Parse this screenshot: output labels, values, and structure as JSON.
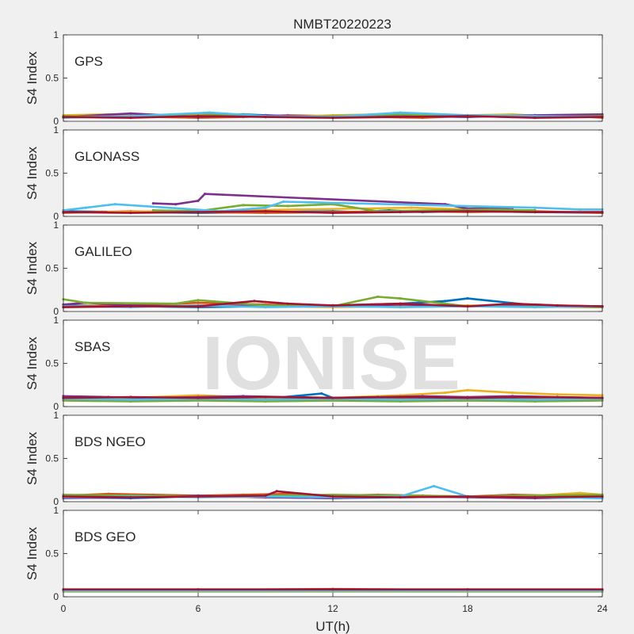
{
  "chart_data": {
    "type": "scatter",
    "title": "NMBT20220223",
    "xlabel": "UT(h)",
    "ylabel": "S4 Index",
    "xlim": [
      0,
      24
    ],
    "ylim": [
      0,
      1
    ],
    "x_ticks": [
      "0",
      "6",
      "12",
      "18",
      "24"
    ],
    "y_ticks": [
      "0",
      "0.5",
      "1"
    ],
    "watermark": "IONISE",
    "series_colors": [
      "#0072BD",
      "#D95319",
      "#EDB120",
      "#7E2F8E",
      "#77AC30",
      "#4DBEEE",
      "#A2142F"
    ],
    "panels": [
      {
        "label": "GPS",
        "series": [
          {
            "x": [
              0,
              2,
              4,
              6,
              8,
              10,
              12,
              14,
              16,
              18,
              20,
              22,
              24
            ],
            "y": [
              0.06,
              0.05,
              0.07,
              0.06,
              0.08,
              0.06,
              0.05,
              0.07,
              0.06,
              0.05,
              0.07,
              0.06,
              0.07
            ]
          },
          {
            "x": [
              0,
              2,
              4,
              6,
              8,
              10,
              12,
              14,
              16,
              18,
              20,
              22,
              24
            ],
            "y": [
              0.04,
              0.06,
              0.05,
              0.04,
              0.05,
              0.07,
              0.06,
              0.05,
              0.04,
              0.06,
              0.05,
              0.07,
              0.04
            ]
          },
          {
            "x": [
              0,
              2,
              4,
              6,
              8,
              10,
              12,
              14,
              16,
              18,
              20,
              22,
              24
            ],
            "y": [
              0.07,
              0.08,
              0.06,
              0.07,
              0.06,
              0.05,
              0.07,
              0.08,
              0.06,
              0.07,
              0.08,
              0.05,
              0.06
            ]
          },
          {
            "x": [
              0,
              3,
              6,
              9,
              12,
              15,
              18,
              21,
              24
            ],
            "y": [
              0.05,
              0.09,
              0.05,
              0.07,
              0.05,
              0.06,
              0.05,
              0.07,
              0.08
            ]
          },
          {
            "x": [
              0,
              3,
              6,
              9,
              12,
              15,
              18,
              21,
              24
            ],
            "y": [
              0.06,
              0.05,
              0.09,
              0.05,
              0.06,
              0.08,
              0.06,
              0.05,
              0.06
            ]
          },
          {
            "x": [
              0,
              3,
              6.5,
              9,
              12,
              15,
              18,
              21,
              24
            ],
            "y": [
              0.04,
              0.06,
              0.1,
              0.06,
              0.05,
              0.1,
              0.07,
              0.06,
              0.05
            ]
          },
          {
            "x": [
              0,
              3,
              6,
              9,
              12,
              15,
              18,
              21,
              24
            ],
            "y": [
              0.05,
              0.04,
              0.06,
              0.05,
              0.04,
              0.05,
              0.06,
              0.04,
              0.05
            ]
          }
        ]
      },
      {
        "label": "GLONASS",
        "series": [
          {
            "x": [
              0,
              3,
              6,
              9,
              12,
              13,
              14.5,
              16,
              18,
              21,
              24
            ],
            "y": [
              0.06,
              0.05,
              0.04,
              0.05,
              0.06,
              0.05,
              0.07,
              0.05,
              0.06,
              0.05,
              0.04
            ]
          },
          {
            "x": [
              0,
              3,
              6,
              9,
              12,
              15,
              18,
              21,
              24
            ],
            "y": [
              0.04,
              0.06,
              0.05,
              0.04,
              0.05,
              0.06,
              0.05,
              0.06,
              0.04
            ]
          },
          {
            "x": [
              2,
              4,
              6,
              8,
              15.5,
              18,
              20
            ],
            "y": [
              0.05,
              0.06,
              0.05,
              0.07,
              0.1,
              0.08,
              0.1
            ]
          },
          {
            "x": [
              4,
              5,
              6,
              6.3,
              17,
              18,
              20
            ],
            "y": [
              0.15,
              0.14,
              0.18,
              0.26,
              0.14,
              0.09,
              0.1
            ]
          },
          {
            "x": [
              4,
              6,
              8,
              10,
              12,
              14,
              19,
              21
            ],
            "y": [
              0.07,
              0.06,
              0.13,
              0.12,
              0.14,
              0.06,
              0.08,
              0.07
            ]
          },
          {
            "x": [
              0,
              1,
              2.3,
              7,
              9,
              9.8,
              21,
              23,
              24
            ],
            "y": [
              0.07,
              0.1,
              0.14,
              0.06,
              0.1,
              0.17,
              0.1,
              0.08,
              0.08
            ]
          },
          {
            "x": [
              0,
              3,
              6,
              9,
              12,
              15,
              18,
              21,
              24
            ],
            "y": [
              0.05,
              0.04,
              0.05,
              0.06,
              0.04,
              0.05,
              0.06,
              0.05,
              0.05
            ]
          }
        ]
      },
      {
        "label": "GALILEO",
        "series": [
          {
            "x": [
              0,
              3,
              6,
              9,
              12,
              15,
              17,
              18,
              21,
              24
            ],
            "y": [
              0.07,
              0.06,
              0.05,
              0.06,
              0.07,
              0.09,
              0.12,
              0.15,
              0.07,
              0.06
            ]
          },
          {
            "x": [
              0,
              3,
              6,
              9,
              12,
              15,
              18,
              21,
              24
            ],
            "y": [
              0.06,
              0.07,
              0.1,
              0.08,
              0.06,
              0.07,
              0.06,
              0.08,
              0.05
            ]
          },
          {
            "x": [
              0,
              3,
              6,
              9,
              12,
              15,
              18,
              21,
              24
            ],
            "y": [
              0.05,
              0.06,
              0.07,
              0.06,
              0.05,
              0.06,
              0.07,
              0.06,
              0.05
            ]
          },
          {
            "x": [
              0,
              1,
              3,
              6,
              9,
              12,
              15,
              18,
              21,
              24
            ],
            "y": [
              0.08,
              0.1,
              0.07,
              0.06,
              0.07,
              0.06,
              0.08,
              0.06,
              0.07,
              0.06
            ]
          },
          {
            "x": [
              0,
              1,
              5,
              6,
              9,
              12,
              14,
              15,
              18,
              24
            ],
            "y": [
              0.14,
              0.1,
              0.09,
              0.13,
              0.07,
              0.06,
              0.17,
              0.15,
              0.06,
              0.05
            ]
          },
          {
            "x": [
              0,
              3,
              6,
              9,
              12,
              15,
              18,
              21,
              24
            ],
            "y": [
              0.06,
              0.05,
              0.07,
              0.05,
              0.06,
              0.05,
              0.06,
              0.05,
              0.06
            ]
          },
          {
            "x": [
              0,
              3,
              6,
              8.5,
              10,
              12,
              15,
              18,
              20,
              22,
              24
            ],
            "y": [
              0.05,
              0.06,
              0.06,
              0.12,
              0.09,
              0.07,
              0.09,
              0.06,
              0.09,
              0.07,
              0.06
            ]
          }
        ]
      },
      {
        "label": "SBAS",
        "series": [
          {
            "x": [
              0,
              3,
              6,
              9,
              11.5,
              12,
              15,
              18,
              21,
              24
            ],
            "y": [
              0.1,
              0.09,
              0.1,
              0.09,
              0.15,
              0.1,
              0.1,
              0.09,
              0.1,
              0.1
            ]
          },
          {
            "x": [
              0,
              3,
              6,
              9,
              12,
              15,
              18,
              21,
              24
            ],
            "y": [
              0.08,
              0.09,
              0.08,
              0.09,
              0.08,
              0.09,
              0.08,
              0.09,
              0.08
            ]
          },
          {
            "x": [
              0,
              3,
              6,
              9,
              12,
              15,
              17,
              18,
              20,
              22,
              24
            ],
            "y": [
              0.1,
              0.1,
              0.13,
              0.1,
              0.1,
              0.13,
              0.16,
              0.19,
              0.16,
              0.14,
              0.13
            ]
          },
          {
            "x": [
              0,
              2,
              4,
              6,
              8,
              10,
              12,
              14,
              16,
              18,
              20,
              22,
              24
            ],
            "y": [
              0.12,
              0.11,
              0.1,
              0.11,
              0.12,
              0.11,
              0.1,
              0.11,
              0.12,
              0.11,
              0.12,
              0.11,
              0.1
            ]
          },
          {
            "x": [
              0,
              3,
              6,
              9,
              12,
              15,
              18,
              21,
              24
            ],
            "y": [
              0.07,
              0.06,
              0.07,
              0.06,
              0.07,
              0.06,
              0.07,
              0.06,
              0.07
            ]
          },
          {
            "x": [
              0,
              3,
              6,
              9,
              12,
              15,
              18,
              21,
              24
            ],
            "y": [
              0.09,
              0.08,
              0.09,
              0.08,
              0.09,
              0.08,
              0.09,
              0.08,
              0.09
            ]
          },
          {
            "x": [
              0,
              3,
              6,
              9,
              12,
              15,
              18,
              21,
              24
            ],
            "y": [
              0.1,
              0.11,
              0.1,
              0.11,
              0.1,
              0.11,
              0.1,
              0.11,
              0.1
            ]
          }
        ]
      },
      {
        "label": "BDS NGEO",
        "series": [
          {
            "x": [
              0,
              3,
              6,
              9,
              12,
              15,
              18,
              21,
              24
            ],
            "y": [
              0.05,
              0.04,
              0.06,
              0.05,
              0.04,
              0.05,
              0.06,
              0.05,
              0.04
            ]
          },
          {
            "x": [
              0,
              2,
              4,
              6,
              8,
              10,
              12,
              14,
              16,
              18,
              20,
              22,
              24
            ],
            "y": [
              0.07,
              0.09,
              0.08,
              0.07,
              0.08,
              0.09,
              0.07,
              0.08,
              0.07,
              0.06,
              0.08,
              0.07,
              0.06
            ]
          },
          {
            "x": [
              0,
              3,
              6,
              9,
              12,
              15,
              18,
              21,
              23,
              24
            ],
            "y": [
              0.06,
              0.07,
              0.06,
              0.05,
              0.06,
              0.07,
              0.06,
              0.07,
              0.1,
              0.08
            ]
          },
          {
            "x": [
              0,
              3,
              6,
              9,
              12,
              15,
              18,
              21,
              24
            ],
            "y": [
              0.04,
              0.05,
              0.07,
              0.05,
              0.04,
              0.06,
              0.05,
              0.04,
              0.05
            ]
          },
          {
            "x": [
              0,
              3,
              6,
              9,
              12,
              15,
              18,
              21,
              24
            ],
            "y": [
              0.08,
              0.07,
              0.06,
              0.07,
              0.08,
              0.07,
              0.06,
              0.07,
              0.08
            ]
          },
          {
            "x": [
              0,
              3,
              6,
              9,
              12,
              15,
              16.5,
              18,
              21,
              24
            ],
            "y": [
              0.05,
              0.06,
              0.05,
              0.06,
              0.05,
              0.06,
              0.18,
              0.06,
              0.05,
              0.04
            ]
          },
          {
            "x": [
              0,
              3,
              6,
              9,
              9.5,
              12,
              15,
              18,
              21,
              24
            ],
            "y": [
              0.06,
              0.05,
              0.06,
              0.07,
              0.12,
              0.06,
              0.05,
              0.06,
              0.05,
              0.06
            ]
          }
        ]
      },
      {
        "label": "BDS GEO",
        "series": [
          {
            "x": [
              0,
              6,
              12,
              18,
              24
            ],
            "y": [
              0.07,
              0.07,
              0.07,
              0.07,
              0.07
            ]
          },
          {
            "x": [
              0,
              6,
              12,
              18,
              24
            ],
            "y": [
              0.08,
              0.08,
              0.09,
              0.08,
              0.08
            ]
          },
          {
            "x": [
              0,
              6,
              12,
              18,
              24
            ],
            "y": [
              0.06,
              0.06,
              0.06,
              0.06,
              0.06
            ]
          },
          {
            "x": [
              0,
              6,
              12,
              18,
              24
            ],
            "y": [
              0.075,
              0.075,
              0.075,
              0.075,
              0.075
            ]
          },
          {
            "x": [
              0,
              6,
              12,
              18,
              24
            ],
            "y": [
              0.065,
              0.065,
              0.065,
              0.065,
              0.065
            ]
          },
          {
            "x": [
              0,
              6,
              12,
              18,
              24
            ],
            "y": [
              0.07,
              0.07,
              0.07,
              0.07,
              0.07
            ]
          },
          {
            "x": [
              0,
              6,
              12,
              18,
              24
            ],
            "y": [
              0.085,
              0.085,
              0.085,
              0.085,
              0.085
            ]
          }
        ]
      }
    ]
  }
}
